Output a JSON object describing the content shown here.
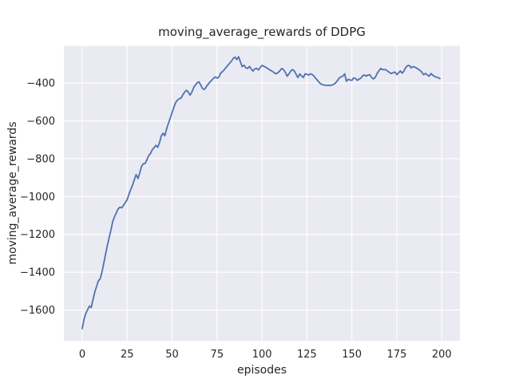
{
  "chart_data": {
    "type": "line",
    "title": "moving_average_rewards of DDPG",
    "xlabel": "episodes",
    "ylabel": "moving_average_rewards",
    "x_ticks": [
      0,
      25,
      50,
      75,
      100,
      125,
      150,
      175,
      200
    ],
    "y_ticks": [
      -400,
      -600,
      -800,
      -1000,
      -1200,
      -1400,
      -1600
    ],
    "xlim": [
      -10.2,
      210.1
    ],
    "ylim": [
      -1763,
      -204
    ],
    "grid": true,
    "legend_position": "none",
    "colors": {
      "line": "#4c72b0",
      "axes_background": "#eaeaf2",
      "grid": "#ffffff",
      "text": "#262626",
      "figure_background": "#ffffff"
    },
    "series": [
      {
        "name": "moving_average_rewards",
        "x_start": 0,
        "x_step": 1,
        "values": [
          -1698,
          -1650,
          -1618,
          -1598,
          -1579,
          -1587,
          -1545,
          -1505,
          -1475,
          -1446,
          -1435,
          -1400,
          -1352,
          -1305,
          -1258,
          -1217,
          -1176,
          -1132,
          -1106,
          -1086,
          -1065,
          -1056,
          -1060,
          -1046,
          -1032,
          -1016,
          -988,
          -962,
          -940,
          -910,
          -884,
          -905,
          -876,
          -840,
          -827,
          -825,
          -806,
          -783,
          -772,
          -752,
          -742,
          -729,
          -740,
          -715,
          -680,
          -665,
          -679,
          -640,
          -612,
          -585,
          -556,
          -528,
          -503,
          -490,
          -483,
          -480,
          -462,
          -448,
          -438,
          -448,
          -464,
          -448,
          -424,
          -410,
          -398,
          -394,
          -412,
          -430,
          -434,
          -420,
          -407,
          -395,
          -386,
          -375,
          -368,
          -374,
          -369,
          -348,
          -340,
          -330,
          -318,
          -307,
          -295,
          -285,
          -270,
          -263,
          -276,
          -261,
          -288,
          -313,
          -306,
          -319,
          -323,
          -312,
          -326,
          -337,
          -325,
          -322,
          -331,
          -318,
          -307,
          -311,
          -316,
          -322,
          -329,
          -334,
          -340,
          -347,
          -351,
          -344,
          -335,
          -323,
          -329,
          -344,
          -364,
          -352,
          -337,
          -329,
          -336,
          -354,
          -371,
          -352,
          -362,
          -371,
          -351,
          -354,
          -358,
          -351,
          -356,
          -364,
          -377,
          -387,
          -399,
          -406,
          -409,
          -412,
          -413,
          -412,
          -413,
          -410,
          -407,
          -398,
          -387,
          -373,
          -367,
          -364,
          -351,
          -391,
          -380,
          -384,
          -386,
          -373,
          -376,
          -386,
          -380,
          -374,
          -362,
          -357,
          -363,
          -358,
          -356,
          -371,
          -378,
          -370,
          -350,
          -336,
          -323,
          -329,
          -329,
          -330,
          -338,
          -344,
          -350,
          -345,
          -342,
          -356,
          -346,
          -336,
          -348,
          -336,
          -317,
          -308,
          -307,
          -320,
          -313,
          -316,
          -321,
          -327,
          -334,
          -344,
          -356,
          -349,
          -357,
          -364,
          -350,
          -359,
          -365,
          -369,
          -372,
          -376
        ]
      }
    ]
  }
}
